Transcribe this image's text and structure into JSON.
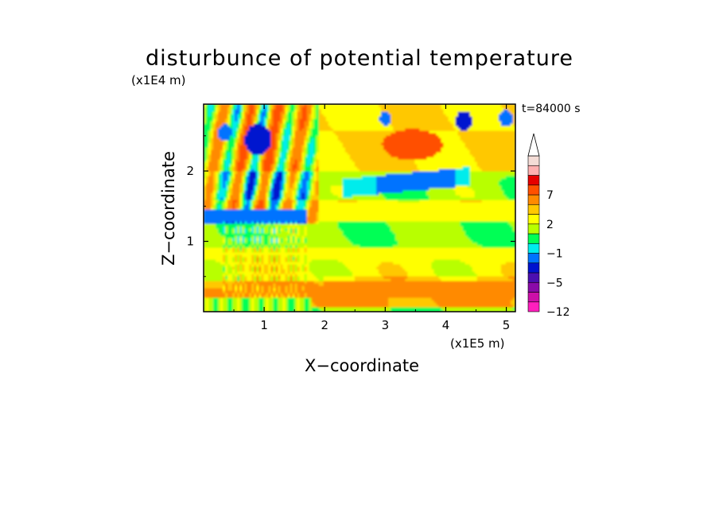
{
  "chart_data": {
    "type": "heatmap",
    "title": "disturbunce of potential temperature",
    "xlabel": "X−coordinate",
    "ylabel": "Z−coordinate",
    "x_unit": "(x1E5 m)",
    "z_unit": "(x1E4 m)",
    "time_label": "t=84000 s",
    "xlim": [
      0,
      5.15
    ],
    "zlim": [
      0,
      2.95
    ],
    "x_ticks": [
      "1",
      "2",
      "3",
      "4",
      "5"
    ],
    "x_tick_values": [
      1,
      2,
      3,
      4,
      5
    ],
    "z_ticks": [
      "1",
      "2"
    ],
    "z_tick_values": [
      1,
      2
    ],
    "colorbar": {
      "labels": [
        "−12",
        "−5",
        "−1",
        "2",
        "7"
      ],
      "levels": [
        -12,
        -9,
        -7,
        -5,
        -3,
        -2,
        -1,
        0,
        1,
        2,
        3,
        5,
        7,
        9,
        12
      ],
      "colors": [
        "#ff1fbd",
        "#cc0fa8",
        "#8a0aa8",
        "#4b0fb0",
        "#0012cf",
        "#0073ff",
        "#00ecec",
        "#00ff55",
        "#b8ff00",
        "#ffff00",
        "#ffc800",
        "#ff8a00",
        "#ff5000",
        "#e60000",
        "#ffb0b0",
        "#f4dcd6"
      ],
      "extend": "max"
    },
    "dominant_layers": [
      {
        "z_range": [
          0.1,
          0.4
        ],
        "value": 3,
        "description": "orange"
      },
      {
        "z_range": [
          0.4,
          0.9
        ],
        "value": 1.5,
        "description": "yellow"
      },
      {
        "z_range": [
          0.9,
          1.3
        ],
        "value": 0,
        "description": "green"
      },
      {
        "z_range": [
          1.3,
          1.6
        ],
        "value": 1.5,
        "description": "yellow"
      },
      {
        "z_range": [
          1.6,
          2.0
        ],
        "value": 0,
        "description": "green/cyan"
      },
      {
        "z_range": [
          2.0,
          2.95
        ],
        "value": 2,
        "description": "yellow/orange with blue cells"
      }
    ]
  }
}
